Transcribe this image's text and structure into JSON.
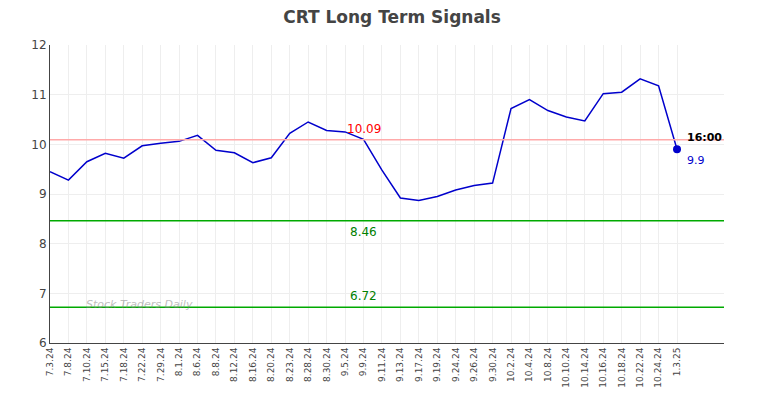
{
  "chart_data": {
    "type": "line",
    "title": "CRT Long Term Signals",
    "categories": [
      "7.3.24",
      "7.8.24",
      "7.10.24",
      "7.15.24",
      "7.18.24",
      "7.22.24",
      "7.29.24",
      "8.1.24",
      "8.6.24",
      "8.8.24",
      "8.12.24",
      "8.16.24",
      "8.20.24",
      "8.23.24",
      "8.28.24",
      "8.30.24",
      "9.5.24",
      "9.9.24",
      "9.11.24",
      "9.13.24",
      "9.17.24",
      "9.19.24",
      "9.24.24",
      "9.26.24",
      "9.30.24",
      "10.2.24",
      "10.4.24",
      "10.8.24",
      "10.10.24",
      "10.14.24",
      "10.16.24",
      "10.18.24",
      "10.22.24",
      "10.24.24",
      "1.3.25"
    ],
    "values": [
      9.45,
      9.28,
      9.65,
      9.82,
      9.72,
      9.97,
      10.02,
      10.06,
      10.18,
      9.88,
      9.83,
      9.63,
      9.73,
      10.22,
      10.45,
      10.28,
      10.25,
      10.1,
      9.48,
      8.92,
      8.87,
      8.95,
      9.08,
      9.17,
      9.22,
      10.72,
      10.9,
      10.68,
      10.55,
      10.47,
      11.02,
      11.05,
      11.32,
      11.18,
      9.9
    ],
    "color": "#0000cc",
    "ylim": [
      6,
      12
    ],
    "yticks": [
      6,
      7,
      8,
      9,
      10,
      11,
      12
    ],
    "grid": true,
    "reference_lines": [
      {
        "value": 10.09,
        "label": "10.09",
        "color": "#ffaaaa",
        "label_color": "red",
        "label_side": "above"
      },
      {
        "value": 8.46,
        "label": "8.46",
        "color": "#00aa00",
        "label_color": "green",
        "label_side": "below"
      },
      {
        "value": 6.72,
        "label": "6.72",
        "color": "#00aa00",
        "label_color": "green",
        "label_side": "above"
      }
    ],
    "last_point": {
      "category": "1.3.25",
      "value": 9.9,
      "time_label": "16:00",
      "marker": "circle"
    },
    "watermark": "Stock Traders Daily"
  }
}
